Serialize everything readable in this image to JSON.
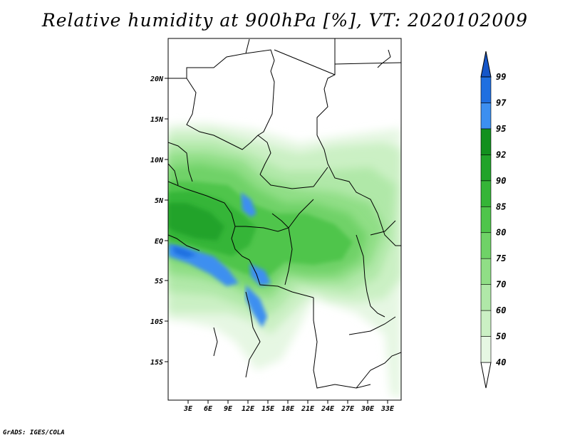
{
  "title": "Relative humidity at 900hPa [%], VT: 2020102009",
  "credit": "GrADS: IGES/COLA",
  "map": {
    "region": "Central Africa",
    "lon_range": [
      0,
      35
    ],
    "lat_range": [
      -20,
      25
    ],
    "lon_ticks": [
      "3E",
      "6E",
      "9E",
      "12E",
      "15E",
      "18E",
      "21E",
      "24E",
      "27E",
      "30E",
      "33E"
    ],
    "lat_ticks": [
      "20N",
      "15N",
      "10N",
      "5N",
      "EQ",
      "5S",
      "10S",
      "15S"
    ]
  },
  "colorbar": {
    "levels": [
      "40",
      "50",
      "60",
      "70",
      "75",
      "80",
      "85",
      "90",
      "92",
      "95",
      "97",
      "99"
    ],
    "colors": [
      "#ffffff",
      "#e6f7e3",
      "#cbf0c4",
      "#b0e8a8",
      "#90de86",
      "#6fd267",
      "#4fc54b",
      "#35b537",
      "#21a32a",
      "#12901e",
      "#3c8ff0",
      "#1f6fe0",
      "#1656c8"
    ]
  }
}
